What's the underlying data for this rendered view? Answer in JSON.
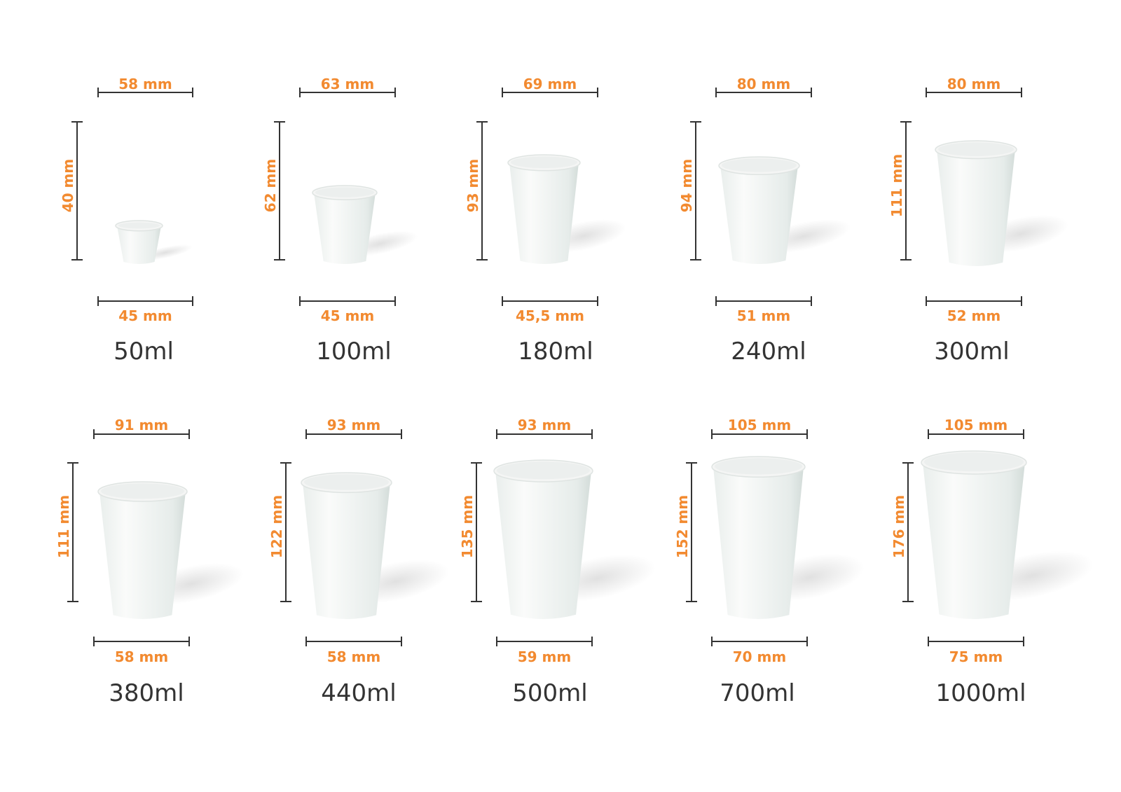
{
  "colors": {
    "dimension_text": "#f28a30",
    "bracket": "#333333",
    "volume_text": "#333333",
    "cup": "#ffffff"
  },
  "cups": [
    {
      "volume": "50ml",
      "top_diameter": "58 mm",
      "height": "40 mm",
      "bottom_diameter": "45 mm"
    },
    {
      "volume": "100ml",
      "top_diameter": "63 mm",
      "height": "62 mm",
      "bottom_diameter": "45 mm"
    },
    {
      "volume": "180ml",
      "top_diameter": "69 mm",
      "height": "93 mm",
      "bottom_diameter": "45,5 mm"
    },
    {
      "volume": "240ml",
      "top_diameter": "80 mm",
      "height": "94 mm",
      "bottom_diameter": "51 mm"
    },
    {
      "volume": "300ml",
      "top_diameter": "80 mm",
      "height": "111 mm",
      "bottom_diameter": "52 mm"
    },
    {
      "volume": "380ml",
      "top_diameter": "91 mm",
      "height": "111 mm",
      "bottom_diameter": "58 mm"
    },
    {
      "volume": "440ml",
      "top_diameter": "93 mm",
      "height": "122 mm",
      "bottom_diameter": "58 mm"
    },
    {
      "volume": "500ml",
      "top_diameter": "93 mm",
      "height": "135 mm",
      "bottom_diameter": "59 mm"
    },
    {
      "volume": "700ml",
      "top_diameter": "105 mm",
      "height": "152 mm",
      "bottom_diameter": "70 mm"
    },
    {
      "volume": "1000ml",
      "top_diameter": "105 mm",
      "height": "176 mm",
      "bottom_diameter": "75 mm"
    }
  ]
}
